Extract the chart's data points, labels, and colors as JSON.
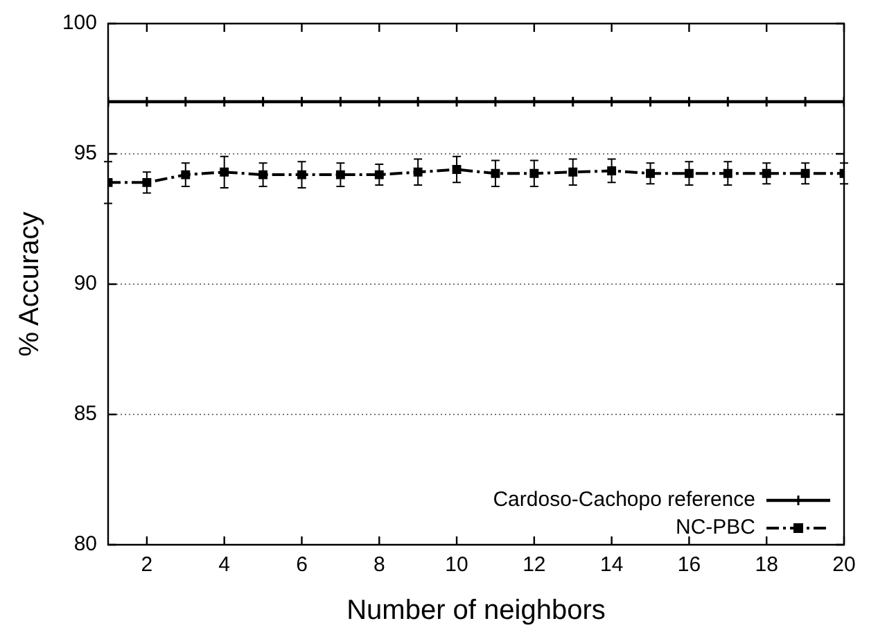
{
  "chart_data": {
    "type": "line",
    "xlabel": "Number of neighbors",
    "ylabel": "% Accuracy",
    "x": [
      1,
      2,
      3,
      4,
      5,
      6,
      7,
      8,
      9,
      10,
      11,
      12,
      13,
      14,
      15,
      16,
      17,
      18,
      19,
      20
    ],
    "series": [
      {
        "name": "Cardoso-Cachopo reference",
        "color": "#000000",
        "marker": "cross",
        "line_style": "solid",
        "values": [
          97,
          97,
          97,
          97,
          97,
          97,
          97,
          97,
          97,
          97,
          97,
          97,
          97,
          97,
          97,
          97,
          97,
          97,
          97,
          97
        ]
      },
      {
        "name": "NC-PBC",
        "color": "#000000",
        "marker": "square",
        "line_style": "dashed",
        "values": [
          93.9,
          93.9,
          94.2,
          94.3,
          94.2,
          94.2,
          94.2,
          94.2,
          94.3,
          94.4,
          94.25,
          94.25,
          94.3,
          94.35,
          94.25,
          94.25,
          94.25,
          94.25,
          94.25,
          94.25
        ],
        "errors": [
          0.8,
          0.4,
          0.45,
          0.6,
          0.45,
          0.5,
          0.45,
          0.4,
          0.5,
          0.5,
          0.5,
          0.5,
          0.5,
          0.45,
          0.4,
          0.45,
          0.45,
          0.4,
          0.4,
          0.4
        ]
      }
    ],
    "xlim": [
      1,
      20
    ],
    "xticks": [
      2,
      4,
      6,
      8,
      10,
      12,
      14,
      16,
      18,
      20
    ],
    "ylim": [
      80,
      100
    ],
    "yticks": [
      80,
      85,
      90,
      95,
      100
    ],
    "grid": "y",
    "legend": "bottom right"
  }
}
